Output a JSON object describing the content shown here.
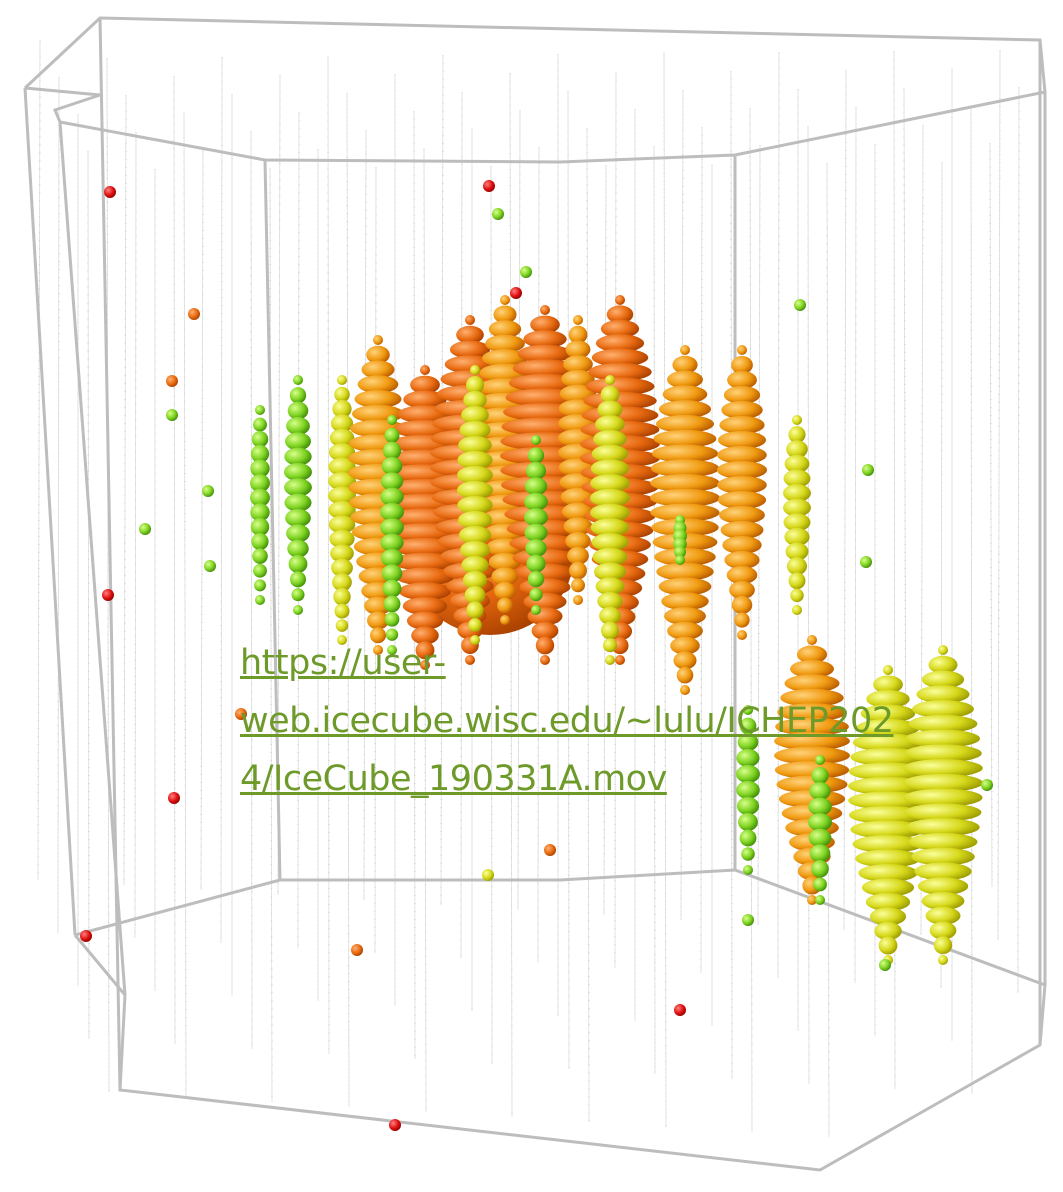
{
  "link": {
    "text": "https://user-web.icecube.wisc.edu/~lulu/ICHEP2024/IceCube_190331A.mov"
  }
}
